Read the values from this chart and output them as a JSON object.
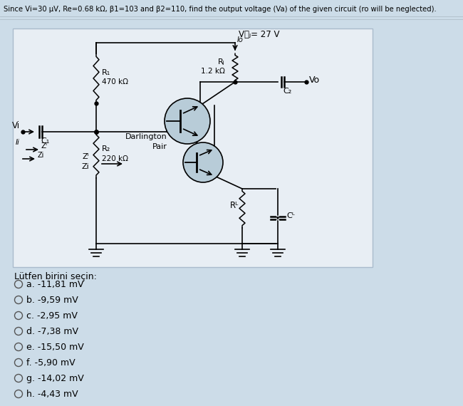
{
  "bg_color": "#ccdce8",
  "circuit_bg": "#e8eef4",
  "circuit_border": "#aabbcc",
  "title": "Since Vi=30 μV, Re=0.68 kΩ, β1=103 and β2=110, find the output voltage (Va) of the given circuit (ro will be neglected).",
  "vcc_text": "VⳀⱼ= 27 V",
  "rc_text": "Rⱼ",
  "rc_val": "1.2 kΩ",
  "r1_text": "R₁",
  "r1_val": "470 kΩ",
  "r2_text": "R₂",
  "r2_val": "220 kΩ",
  "re_text": "Rᴸ",
  "ce_text": "Cᴸ",
  "c1_text": "C₁",
  "c2_text": "C₂",
  "vi_text": "Vi",
  "ii_text": "Ii",
  "vo_text": "Vo",
  "zi_text": "Zi",
  "zi2_text": "Zᴵ",
  "darlington": "Darlington\nPair",
  "options_title": "Lütfen birini seçin:",
  "options": [
    "a. -11,81 mV",
    "b. -9,59 mV",
    "c. -2,95 mV",
    "d. -7,38 mV",
    "e. -15,50 mV",
    "f. -5,90 mV",
    "g. -14,02 mV",
    "h. -4,43 mV"
  ],
  "figsize": [
    6.5,
    5.7
  ],
  "dpi": 100
}
